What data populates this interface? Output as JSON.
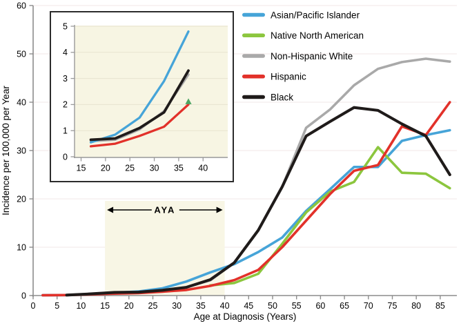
{
  "chart_data": {
    "type": "line",
    "title": "",
    "xlabel": "Age at Diagnosis (Years)",
    "ylabel": "Incidence per 100,000 per Year",
    "main": {
      "xlim": [
        0,
        88
      ],
      "ylim": [
        0,
        60
      ],
      "xticks": [
        0,
        5,
        10,
        15,
        20,
        25,
        30,
        35,
        40,
        45,
        50,
        55,
        60,
        65,
        70,
        75,
        80,
        85
      ],
      "yticks": [
        0,
        10,
        20,
        30,
        40,
        50,
        60
      ],
      "grid": "horizontal-light",
      "series": [
        {
          "name": "Non-Hispanic White",
          "color": "#A9A9A9",
          "ages": [
            2,
            7,
            12,
            17,
            22,
            27,
            32,
            37,
            42,
            47,
            52,
            57,
            62,
            67,
            72,
            77,
            82,
            87
          ],
          "values": [
            0.05,
            0.1,
            0.3,
            0.6,
            0.65,
            1.05,
            1.75,
            3.15,
            6.8,
            13.5,
            22.5,
            34.7,
            38.5,
            43.5,
            46.9,
            48.3,
            49.0,
            48.4
          ]
        },
        {
          "name": "Asian/Pacific Islander",
          "color": "#46A4D8",
          "ages": [
            2,
            7,
            12,
            17,
            22,
            27,
            32,
            37,
            42,
            47,
            52,
            57,
            62,
            67,
            72,
            77,
            82,
            87
          ],
          "values": [
            0.05,
            0.1,
            0.35,
            0.55,
            0.85,
            1.5,
            2.9,
            4.8,
            6.5,
            9.0,
            12.0,
            17.5,
            22.0,
            26.6,
            26.6,
            32.0,
            33.2,
            34.2
          ]
        },
        {
          "name": "Native North American",
          "color": "#8CC63E",
          "ages": [
            37,
            42,
            47,
            52,
            57,
            62,
            67,
            72,
            77,
            82,
            87
          ],
          "values": [
            2.1,
            2.6,
            4.5,
            10.7,
            17.2,
            21.5,
            23.5,
            30.7,
            25.4,
            25.2,
            22.2
          ]
        },
        {
          "name": "Hispanic",
          "color": "#E2312A",
          "ages": [
            2,
            7,
            12,
            17,
            22,
            27,
            32,
            37,
            42,
            47,
            52,
            57,
            62,
            67,
            72,
            77,
            82,
            87
          ],
          "values": [
            0.05,
            0.1,
            0.25,
            0.4,
            0.5,
            0.8,
            1.15,
            2.0,
            3.2,
            5.3,
            10.0,
            15.5,
            21.0,
            25.8,
            27.0,
            35.0,
            33.2,
            40.0
          ]
        },
        {
          "name": "Black",
          "color": "#1F1B1A",
          "ages": [
            7,
            12,
            17,
            22,
            27,
            32,
            37,
            42,
            47,
            52,
            57,
            62,
            67,
            72,
            77,
            82,
            87
          ],
          "values": [
            0.1,
            0.35,
            0.65,
            0.7,
            1.1,
            1.7,
            3.3,
            6.8,
            13.5,
            22.5,
            33.0,
            36.0,
            38.9,
            38.3,
            35.5,
            33.0,
            25.0
          ]
        }
      ]
    },
    "inset": {
      "xlim": [
        13,
        42
      ],
      "ylim": [
        0,
        5
      ],
      "xticks": [
        15,
        20,
        25,
        30,
        35,
        40
      ],
      "yticks": [
        0,
        1,
        2,
        3,
        4,
        5
      ],
      "plot_bg": "#F7F5E3",
      "series": [
        {
          "name": "Non-Hispanic White",
          "color": "#A9A9A9",
          "ages": [
            17,
            22,
            27,
            32,
            37
          ],
          "values": [
            0.6,
            0.65,
            1.05,
            1.75,
            3.15
          ]
        },
        {
          "name": "Asian/Pacific Islander",
          "color": "#46A4D8",
          "ages": [
            17,
            22,
            27,
            32,
            37
          ],
          "values": [
            0.55,
            0.85,
            1.5,
            2.9,
            4.8
          ]
        },
        {
          "name": "Hispanic",
          "color": "#E2312A",
          "ages": [
            17,
            22,
            27,
            32,
            37
          ],
          "values": [
            0.4,
            0.5,
            0.8,
            1.15,
            2.0
          ]
        },
        {
          "name": "Black",
          "color": "#1F1B1A",
          "ages": [
            17,
            22,
            27,
            32,
            37
          ],
          "values": [
            0.65,
            0.7,
            1.1,
            1.7,
            3.3
          ]
        }
      ],
      "point_series": {
        "name": "Native North American",
        "color": "#4CA462",
        "marker": "triangle-up",
        "age": 37,
        "value": 2.1
      }
    },
    "aya": {
      "label": "AYA",
      "x_start": 15,
      "x_end": 40,
      "fill": "#F8F6E5"
    }
  },
  "legend": {
    "items": [
      {
        "label": "Asian/Pacific Islander",
        "color": "#46A4D8"
      },
      {
        "label": "Native North American",
        "color": "#8CC63E"
      },
      {
        "label": "Non-Hispanic White",
        "color": "#A9A9A9"
      },
      {
        "label": "Hispanic",
        "color": "#E2312A"
      },
      {
        "label": "Black",
        "color": "#1F1B1A"
      }
    ]
  }
}
